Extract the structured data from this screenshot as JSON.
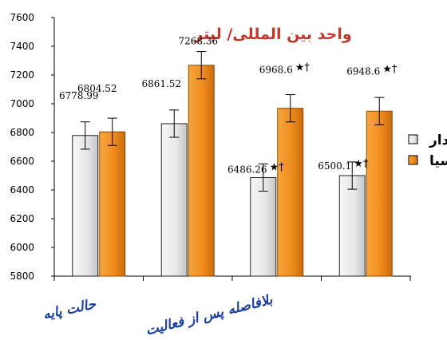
{
  "chart_data": {
    "type": "bar",
    "title": "واحد بين المللى/ ليتر",
    "title_color": "#c0392b",
    "xlabel_color": "#1a3fa0",
    "ylim": [
      5800,
      7600
    ],
    "yticks": [
      5800,
      6000,
      6200,
      6400,
      6600,
      6800,
      7000,
      7200,
      7400,
      7600
    ],
    "grid": false,
    "legend_position": "right",
    "categories": [
      "حالت پايه",
      "بلافاصله پس از فعاليت",
      "",
      ""
    ],
    "series": [
      {
        "name": "دار",
        "color": "#e6e6e6",
        "values": [
          6778.99,
          6861.52,
          6486.26,
          6500.1
        ],
        "labels": [
          "6778.99",
          "6861.52",
          "6486.26",
          "6500.1"
        ],
        "errors": [
          95,
          95,
          95,
          95
        ],
        "markers": [
          "",
          "",
          "★†",
          "★†"
        ]
      },
      {
        "name": "سيا",
        "color": "#f08c1e",
        "values": [
          6804.52,
          7268.36,
          6968.6,
          6948.6
        ],
        "labels": [
          "6804.52",
          "7268.36",
          "6968.6",
          "6948.6"
        ],
        "errors": [
          95,
          95,
          95,
          95
        ],
        "markers": [
          "",
          "",
          "★†",
          "★†"
        ]
      }
    ]
  }
}
